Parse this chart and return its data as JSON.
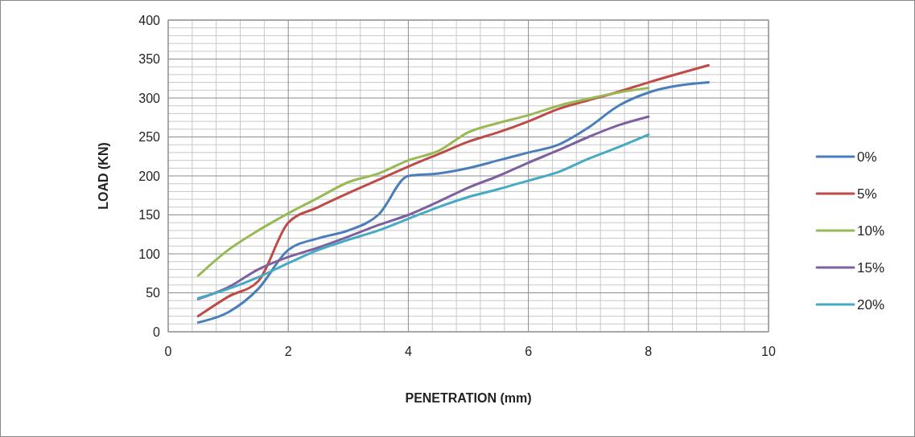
{
  "chart_data": {
    "type": "line",
    "xlabel": "PENETRATION (mm)",
    "ylabel": "LOAD (KN)",
    "x": [
      0.5,
      1,
      1.5,
      2,
      2.5,
      3,
      3.5,
      4,
      4.5,
      5,
      5.5,
      6,
      6.5,
      7,
      7.5,
      8
    ],
    "xlim": [
      0,
      10
    ],
    "xticks": [
      0,
      2,
      4,
      6,
      8,
      10
    ],
    "ylim": [
      0,
      400
    ],
    "yticks": [
      0,
      50,
      100,
      150,
      200,
      250,
      300,
      350,
      400
    ],
    "grid": true,
    "legend": "right",
    "marker": "none",
    "line_style": "solid",
    "series": [
      {
        "name": "0%",
        "color": "#4a7ebb",
        "x": [
          0.5,
          1,
          1.5,
          2,
          2.5,
          3,
          3.5,
          4,
          4.5,
          5,
          5.5,
          6,
          6.5,
          7,
          7.5,
          8,
          9
        ],
        "values": [
          12,
          25,
          55,
          105,
          120,
          130,
          150,
          200,
          203,
          210,
          220,
          230,
          240,
          262,
          290,
          307,
          320
        ]
      },
      {
        "name": "5%",
        "color": "#be4b48",
        "x": [
          0.5,
          1,
          1.5,
          2,
          2.5,
          3,
          3.5,
          4,
          4.5,
          5,
          5.5,
          6,
          6.5,
          7,
          7.5,
          8,
          9
        ],
        "values": [
          20,
          45,
          65,
          140,
          160,
          178,
          195,
          212,
          228,
          244,
          256,
          270,
          286,
          297,
          308,
          320,
          342
        ]
      },
      {
        "name": "10%",
        "color": "#98b954",
        "values": [
          72,
          105,
          130,
          152,
          172,
          192,
          203,
          220,
          232,
          256,
          268,
          278,
          290,
          299,
          307,
          313
        ]
      },
      {
        "name": "15%",
        "color": "#7d60a0",
        "values": [
          42,
          57,
          80,
          96,
          108,
          122,
          137,
          150,
          167,
          185,
          200,
          217,
          233,
          250,
          265,
          276
        ]
      },
      {
        "name": "20%",
        "color": "#46aac5",
        "values": [
          43,
          55,
          70,
          88,
          105,
          118,
          130,
          145,
          160,
          173,
          183,
          194,
          205,
          222,
          237,
          253
        ]
      }
    ]
  }
}
